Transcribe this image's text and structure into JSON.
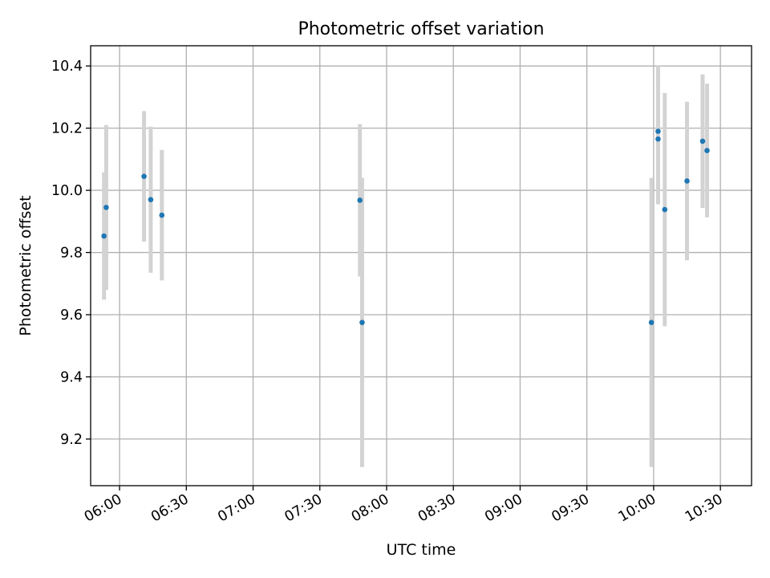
{
  "chart_data": {
    "type": "scatter",
    "title": "Photometric offset variation",
    "xlabel": "UTC time",
    "ylabel": "Photometric offset",
    "xlim": [
      "05:47",
      "10:44"
    ],
    "ylim": [
      9.05,
      10.465
    ],
    "grid": true,
    "x_ticks": [
      "06:00",
      "06:30",
      "07:00",
      "07:30",
      "08:00",
      "08:30",
      "09:00",
      "09:30",
      "10:00",
      "10:30"
    ],
    "y_ticks": [
      "9.2",
      "9.4",
      "9.6",
      "9.8",
      "10.0",
      "10.2",
      "10.4"
    ],
    "point_color": "#1f77b4",
    "errorbar_color": "#d3d3d3",
    "points": [
      {
        "time": "05:53",
        "y": 9.853,
        "err": 0.205
      },
      {
        "time": "05:54",
        "y": 9.945,
        "err": 0.265
      },
      {
        "time": "06:11",
        "y": 10.045,
        "err": 0.21
      },
      {
        "time": "06:14",
        "y": 9.97,
        "err": 0.235
      },
      {
        "time": "06:19",
        "y": 9.92,
        "err": 0.21
      },
      {
        "time": "07:48",
        "y": 9.968,
        "err": 0.245
      },
      {
        "time": "07:49",
        "y": 9.575,
        "err": 0.465
      },
      {
        "time": "09:59",
        "y": 9.575,
        "err": 0.465
      },
      {
        "time": "10:02",
        "y": 10.19,
        "err": 0.21
      },
      {
        "time": "10:02",
        "y": 10.165,
        "err": 0.21
      },
      {
        "time": "10:05",
        "y": 9.938,
        "err": 0.375
      },
      {
        "time": "10:15",
        "y": 10.03,
        "err": 0.255
      },
      {
        "time": "10:22",
        "y": 10.158,
        "err": 0.215
      },
      {
        "time": "10:24",
        "y": 10.128,
        "err": 0.215
      }
    ]
  }
}
